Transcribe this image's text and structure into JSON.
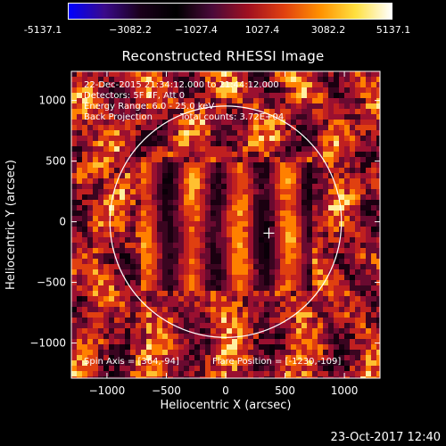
{
  "colorbar": {
    "ticks": [
      "-5137.1",
      "−3082.2",
      "−1027.4",
      "1027.4",
      "3082.2",
      "5137.1"
    ],
    "stops": [
      "#0000ff",
      "#3a0a8a",
      "#1a001a",
      "#000000",
      "#4a0a3a",
      "#a01020",
      "#e04010",
      "#ff9000",
      "#ffe040",
      "#ffffff"
    ]
  },
  "title": "Reconstructed RHESSI Image",
  "info": {
    "line1": "22-Dec-2015 21:34:12.000 to 21:44:12.000",
    "line2": "Detectors: 5F 7F, Att 0",
    "line3": "Energy Range: 6.0 - 25.0 keV",
    "line4a": "Back Projection",
    "line4b": "Total counts: 3.72E+04"
  },
  "bottom_info": {
    "spin_axis": "Spin Axis = [364,-94]",
    "flare_position": "Flare Position = [-1230,-109]"
  },
  "footer": "23-Oct-2017 12:40",
  "chart_data": {
    "type": "heatmap",
    "title": "Reconstructed RHESSI Image",
    "xlabel": "Heliocentric X (arcsec)",
    "ylabel": "Heliocentric Y (arcsec)",
    "xlim": [
      -1300,
      1300
    ],
    "ylim": [
      -1290,
      1240
    ],
    "x_ticks": [
      -1000,
      -500,
      0,
      500,
      1000
    ],
    "x_tick_labels": [
      "−1000",
      "−500",
      "0",
      "500",
      "1000"
    ],
    "y_ticks": [
      1000,
      500,
      0,
      -500,
      -1000
    ],
    "y_tick_labels": [
      "1000",
      "500",
      "0",
      "−500",
      "−1000"
    ],
    "solar_limb_radius": 975,
    "solar_limb_center": [
      0,
      0
    ],
    "marker_position": [
      364,
      -94
    ],
    "colorbar_range": [
      -5137.1,
      5137.1
    ]
  }
}
